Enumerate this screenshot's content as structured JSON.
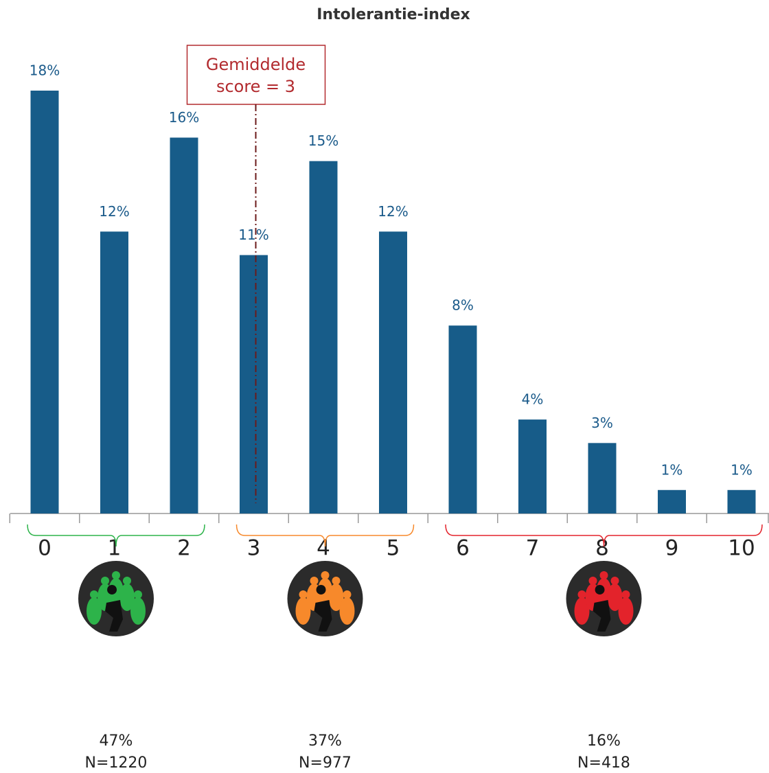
{
  "chart_data": {
    "type": "bar",
    "title": "Intolerantie-index",
    "categories": [
      "0",
      "1",
      "2",
      "3",
      "4",
      "5",
      "6",
      "7",
      "8",
      "9",
      "10"
    ],
    "values": [
      18,
      12,
      16,
      11,
      15,
      12,
      8,
      4,
      3,
      1,
      1
    ],
    "value_labels": [
      "18%",
      "12%",
      "16%",
      "11%",
      "15%",
      "12%",
      "8%",
      "4%",
      "3%",
      "1%",
      "1%"
    ],
    "color": "#175c89",
    "annotation": {
      "lines": [
        "Gemiddelde",
        "score = 3"
      ],
      "value": 3,
      "color": "#b22a2e"
    },
    "groups": [
      {
        "categories": [
          "0",
          "1",
          "2"
        ],
        "value": 47,
        "value_label": "47%",
        "n": "N=1220",
        "color": "#2db34a"
      },
      {
        "categories": [
          "3",
          "4",
          "5"
        ],
        "value": 37,
        "value_label": "37%",
        "n": "N=977",
        "color": "#f7892b"
      },
      {
        "categories": [
          "6",
          "7",
          "8",
          "9",
          "10"
        ],
        "value": 16,
        "value_label": "16%",
        "n": "N=418",
        "color": "#e3232b"
      }
    ]
  }
}
